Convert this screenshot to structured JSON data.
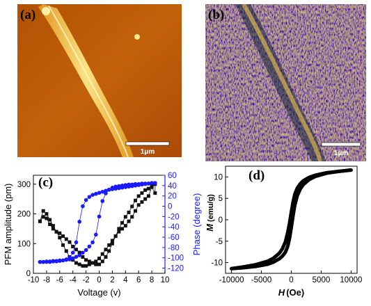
{
  "panels": {
    "a": {
      "label": "(a)",
      "scalebar": "1μm"
    },
    "b": {
      "label": "(b)",
      "scalebar": "1μm"
    },
    "c": {
      "label": "(c)"
    },
    "d": {
      "label": "(d)"
    }
  },
  "colors": {
    "afm_dark": "#8b2c00",
    "afm_mid": "#c8650a",
    "afm_bright": "#ffe27a",
    "phase_bg": "#2b5a8a",
    "phase_hot": "#ffcc33",
    "amp_series": "#111111",
    "phase_series": "#1a1aff",
    "mh_series": "#000000"
  },
  "chart_data": [
    {
      "panel": "c",
      "type": "line",
      "xlabel": "Voltage (v)",
      "ylabel": "PFM amplitude (pm)",
      "ylabel_right": "Phase (degree)",
      "xlim": [
        -10,
        10
      ],
      "ylim": [
        0,
        330
      ],
      "ylim_right": [
        -130,
        60
      ],
      "xticks": [
        -10,
        -8,
        -6,
        -4,
        -2,
        0,
        2,
        4,
        6,
        8,
        10
      ],
      "yticks": [
        0,
        100,
        200,
        300
      ],
      "yticks_right": [
        -120,
        -100,
        -80,
        -60,
        -40,
        -20,
        0,
        20,
        40,
        60
      ],
      "series": [
        {
          "axis": "left",
          "marker": "square",
          "x": [
            -9,
            -8.5,
            -8,
            -7.5,
            -7,
            -6.5,
            -6,
            -5.5,
            -5,
            -4.5,
            -4,
            -3.5,
            -3,
            -2.5,
            -2,
            -1.5,
            -1,
            -0.5,
            0,
            0.5,
            1,
            1.5,
            2,
            2.5,
            3,
            3.5,
            4,
            4.5,
            5,
            5.5,
            6,
            6.5,
            7,
            7.5,
            8,
            8.5,
            8.5,
            8,
            7.5,
            7,
            6.5,
            6,
            5.5,
            5,
            4.5,
            4,
            3.5,
            3,
            2.5,
            2,
            1.5,
            1,
            0.5,
            0,
            -0.5,
            -1,
            -1.5,
            -2,
            -2.5,
            -3,
            -3.5,
            -4,
            -4.5,
            -5,
            -5.5,
            -6,
            -6.5,
            -7,
            -7.5,
            -8,
            -8.5,
            -9
          ],
          "y": [
            175,
            190,
            185,
            165,
            150,
            140,
            135,
            125,
            115,
            105,
            90,
            80,
            70,
            55,
            45,
            40,
            35,
            30,
            30,
            40,
            55,
            75,
            100,
            125,
            150,
            170,
            190,
            205,
            225,
            245,
            260,
            270,
            280,
            285,
            295,
            300,
            270,
            290,
            260,
            250,
            240,
            230,
            210,
            190,
            175,
            160,
            150,
            140,
            125,
            110,
            95,
            80,
            65,
            50,
            40,
            35,
            30,
            25,
            25,
            30,
            35,
            45,
            55,
            75,
            95,
            120,
            140,
            160,
            180,
            200,
            210,
            175
          ]
        },
        {
          "axis": "right",
          "marker": "circle",
          "x": [
            -9,
            -8.5,
            -8,
            -7.5,
            -7,
            -6.5,
            -6,
            -5.5,
            -5,
            -4.5,
            -4,
            -3.5,
            -3,
            -2.5,
            -2,
            -1.5,
            -1,
            -0.5,
            0,
            0.5,
            1,
            1.5,
            2,
            2.5,
            3,
            3.5,
            4,
            4.5,
            5,
            5.5,
            6,
            6.5,
            7,
            7.5,
            8,
            8.5,
            8.5,
            8,
            7.5,
            7,
            6.5,
            6,
            5.5,
            5,
            4.5,
            4,
            3.5,
            3,
            2.5,
            2,
            1.5,
            1,
            0.5,
            0,
            -0.5,
            -1,
            -1.5,
            -2,
            -2.5,
            -3,
            -3.5,
            -4,
            -4.5,
            -5,
            -5.5,
            -6,
            -6.5,
            -7,
            -7.5,
            -8,
            -8.5,
            -9
          ],
          "y": [
            -108,
            -108,
            -107,
            -107,
            -106,
            -106,
            -105,
            -105,
            -104,
            -103,
            -101,
            -98,
            -95,
            -90,
            -85,
            -78,
            -70,
            -55,
            -20,
            10,
            25,
            32,
            36,
            38,
            39,
            40,
            41,
            42,
            42,
            43,
            43,
            44,
            44,
            44,
            45,
            45,
            45,
            45,
            44,
            43,
            42,
            41,
            40,
            39,
            38,
            37,
            36,
            35,
            34,
            33,
            32,
            30,
            28,
            26,
            24,
            22,
            18,
            12,
            0,
            -30,
            -70,
            -90,
            -100,
            -103,
            -105,
            -106,
            -107,
            -107,
            -108,
            -108,
            -108,
            -108
          ]
        }
      ]
    },
    {
      "panel": "d",
      "type": "line",
      "xlabel_var": "H",
      "xlabel_unit": "(Oe)",
      "ylabel_var": "M",
      "ylabel_unit": "(emu/g)",
      "xlim": [
        -11000,
        11000
      ],
      "ylim": [
        -12.5,
        12.5
      ],
      "xticks": [
        -10000,
        -5000,
        0,
        5000,
        10000
      ],
      "yticks": [
        -10,
        -5,
        0,
        5,
        10
      ],
      "series": [
        {
          "x": [
            -10000,
            -8000,
            -6000,
            -4000,
            -3000,
            -2000,
            -1500,
            -1000,
            -600,
            -300,
            0,
            300,
            600,
            1000,
            1500,
            2000,
            3000,
            4000,
            6000,
            8000,
            10000
          ],
          "y": [
            -11.4,
            -11.0,
            -10.5,
            -9.7,
            -9.0,
            -7.8,
            -6.8,
            -5.2,
            -3.0,
            -0.8,
            1.8,
            4.2,
            6.0,
            7.4,
            8.4,
            9.1,
            9.9,
            10.4,
            11.0,
            11.3,
            11.6
          ]
        },
        {
          "x": [
            10000,
            8000,
            6000,
            4000,
            3000,
            2000,
            1500,
            1000,
            600,
            300,
            0,
            -300,
            -600,
            -1000,
            -1500,
            -2000,
            -3000,
            -4000,
            -6000,
            -8000,
            -10000
          ],
          "y": [
            11.6,
            11.3,
            10.9,
            10.1,
            9.4,
            8.2,
            7.2,
            5.6,
            3.5,
            1.0,
            -1.8,
            -4.4,
            -6.2,
            -7.6,
            -8.5,
            -9.1,
            -9.9,
            -10.4,
            -10.9,
            -11.2,
            -11.4
          ]
        }
      ]
    }
  ]
}
